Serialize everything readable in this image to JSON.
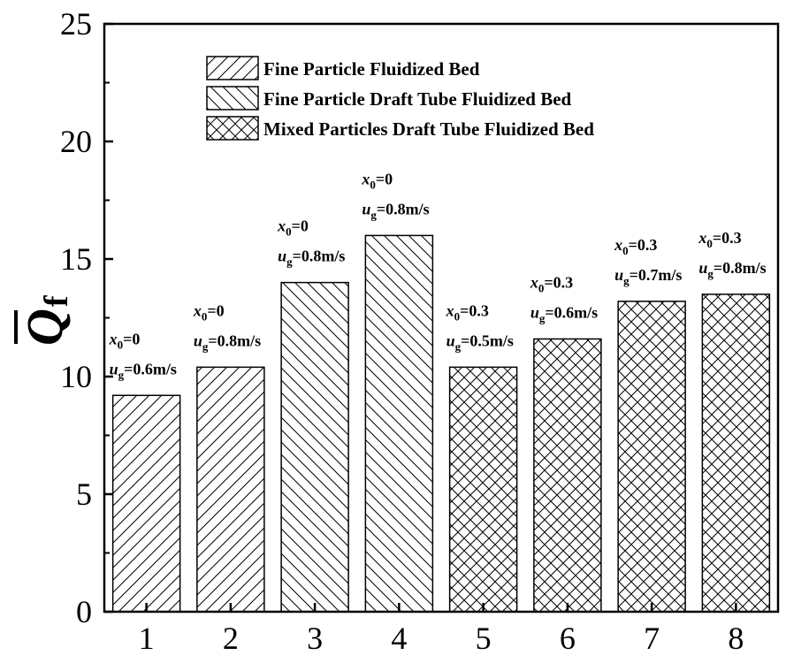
{
  "chart_data": {
    "type": "bar",
    "categories": [
      "1",
      "2",
      "3",
      "4",
      "5",
      "6",
      "7",
      "8"
    ],
    "values": [
      9.2,
      10.4,
      14.0,
      16.0,
      10.4,
      11.6,
      13.2,
      13.5
    ],
    "bar_series_index": [
      0,
      0,
      1,
      1,
      2,
      2,
      2,
      2
    ],
    "series": [
      {
        "name": "Fine Particle Fluidized Bed",
        "pattern": "hatch-forward"
      },
      {
        "name": "Fine Particle Draft Tube Fluidized Bed",
        "pattern": "hatch-backward"
      },
      {
        "name": "Mixed Particles Draft Tube Fluidized Bed",
        "pattern": "crosshatch"
      }
    ],
    "annotations": [
      {
        "x0": "0",
        "ug": "0.6m/s"
      },
      {
        "x0": "0",
        "ug": "0.8m/s"
      },
      {
        "x0": "0",
        "ug": "0.8m/s"
      },
      {
        "x0": "0",
        "ug": "0.8m/s"
      },
      {
        "x0": "0.3",
        "ug": "0.5m/s"
      },
      {
        "x0": "0.3",
        "ug": "0.6m/s"
      },
      {
        "x0": "0.3",
        "ug": "0.7m/s"
      },
      {
        "x0": "0.3",
        "ug": "0.8m/s"
      }
    ],
    "ylabel": "Q",
    "ylabel_subscript": "f",
    "ylabel_overbar": true,
    "ylim": [
      0,
      25
    ],
    "yticks": [
      0,
      5,
      10,
      15,
      20,
      25
    ],
    "xlabel": "",
    "grid": false,
    "legend_position": "top-center"
  }
}
